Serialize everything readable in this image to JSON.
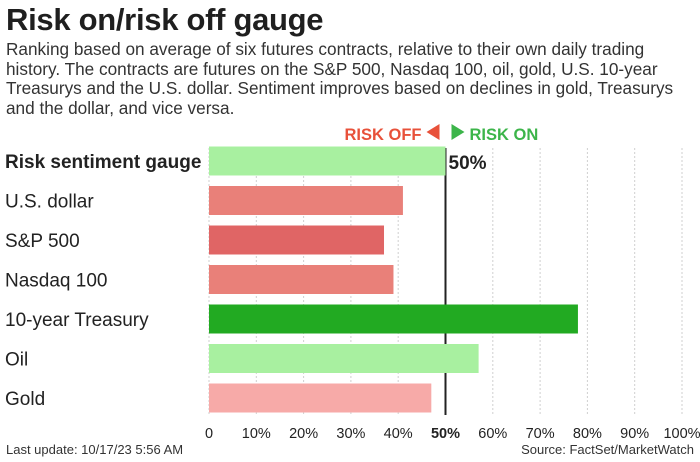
{
  "title": "Risk on/risk off gauge",
  "subtitle": "Ranking based on average of six futures contracts, relative to their own daily trading history. The contracts are futures on the S&P 500, Nasdaq 100, oil, gold, U.S. 10-year Treasurys and the U.S. dollar. Sentiment improves based on declines in gold, Treasurys and the dollar, and vice versa.",
  "footer": {
    "last_update": "Last update: 10/17/23 5:56 AM",
    "source": "Source: FactSet/MarketWatch"
  },
  "chart_data": {
    "type": "bar",
    "orientation": "horizontal",
    "legend": {
      "risk_off_label": "RISK OFF",
      "risk_on_label": "RISK ON",
      "risk_off_color": "#e8513a",
      "risk_on_color": "#3cb54a"
    },
    "categories": [
      "Risk sentiment gauge",
      "U.S. dollar",
      "S&P 500",
      "Nasdaq 100",
      "10-year Treasury",
      "Oil",
      "Gold"
    ],
    "values": [
      50,
      41,
      37,
      39,
      78,
      57,
      47
    ],
    "colors": [
      "#a8f0a0",
      "#e98079",
      "#e06565",
      "#e98079",
      "#22aa22",
      "#a8f0a0",
      "#f7aaa8"
    ],
    "value_labels": [
      "50%",
      "",
      "",
      "",
      "",
      "",
      ""
    ],
    "xlim": [
      0,
      100
    ],
    "xticks": [
      "0",
      "10%",
      "20%",
      "30%",
      "40%",
      "50%",
      "60%",
      "70%",
      "80%",
      "90%",
      "100%"
    ],
    "highlight_tick": "50%",
    "grid": true
  }
}
